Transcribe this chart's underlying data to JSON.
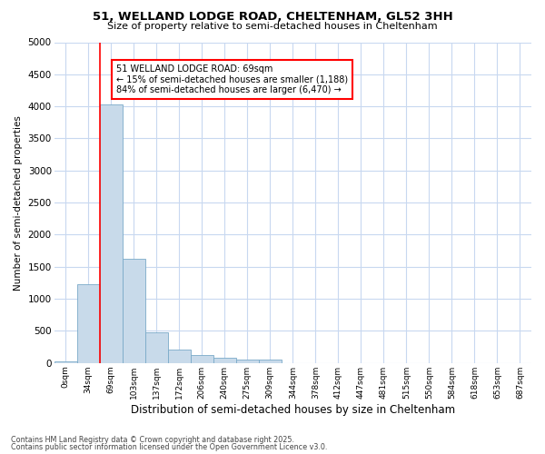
{
  "title_line1": "51, WELLAND LODGE ROAD, CHELTENHAM, GL52 3HH",
  "title_line2": "Size of property relative to semi-detached houses in Cheltenham",
  "xlabel": "Distribution of semi-detached houses by size in Cheltenham",
  "ylabel": "Number of semi-detached properties",
  "bar_color": "#c8daea",
  "bar_edge_color": "#7aaac8",
  "annotation_title": "51 WELLAND LODGE ROAD: 69sqm",
  "annotation_line1": "← 15% of semi-detached houses are smaller (1,188)",
  "annotation_line2": "84% of semi-detached houses are larger (6,470) →",
  "footer_line1": "Contains HM Land Registry data © Crown copyright and database right 2025.",
  "footer_line2": "Contains public sector information licensed under the Open Government Licence v3.0.",
  "categories": [
    "0sqm",
    "34sqm",
    "69sqm",
    "103sqm",
    "137sqm",
    "172sqm",
    "206sqm",
    "240sqm",
    "275sqm",
    "309sqm",
    "344sqm",
    "378sqm",
    "412sqm",
    "447sqm",
    "481sqm",
    "515sqm",
    "550sqm",
    "584sqm",
    "618sqm",
    "653sqm",
    "687sqm"
  ],
  "values": [
    20,
    1230,
    4030,
    1620,
    480,
    210,
    130,
    80,
    60,
    50,
    0,
    0,
    0,
    0,
    0,
    0,
    0,
    0,
    0,
    0,
    0
  ],
  "ylim": [
    0,
    5000
  ],
  "yticks": [
    0,
    500,
    1000,
    1500,
    2000,
    2500,
    3000,
    3500,
    4000,
    4500,
    5000
  ],
  "background_color": "#ffffff",
  "grid_color": "#c8d8f0"
}
